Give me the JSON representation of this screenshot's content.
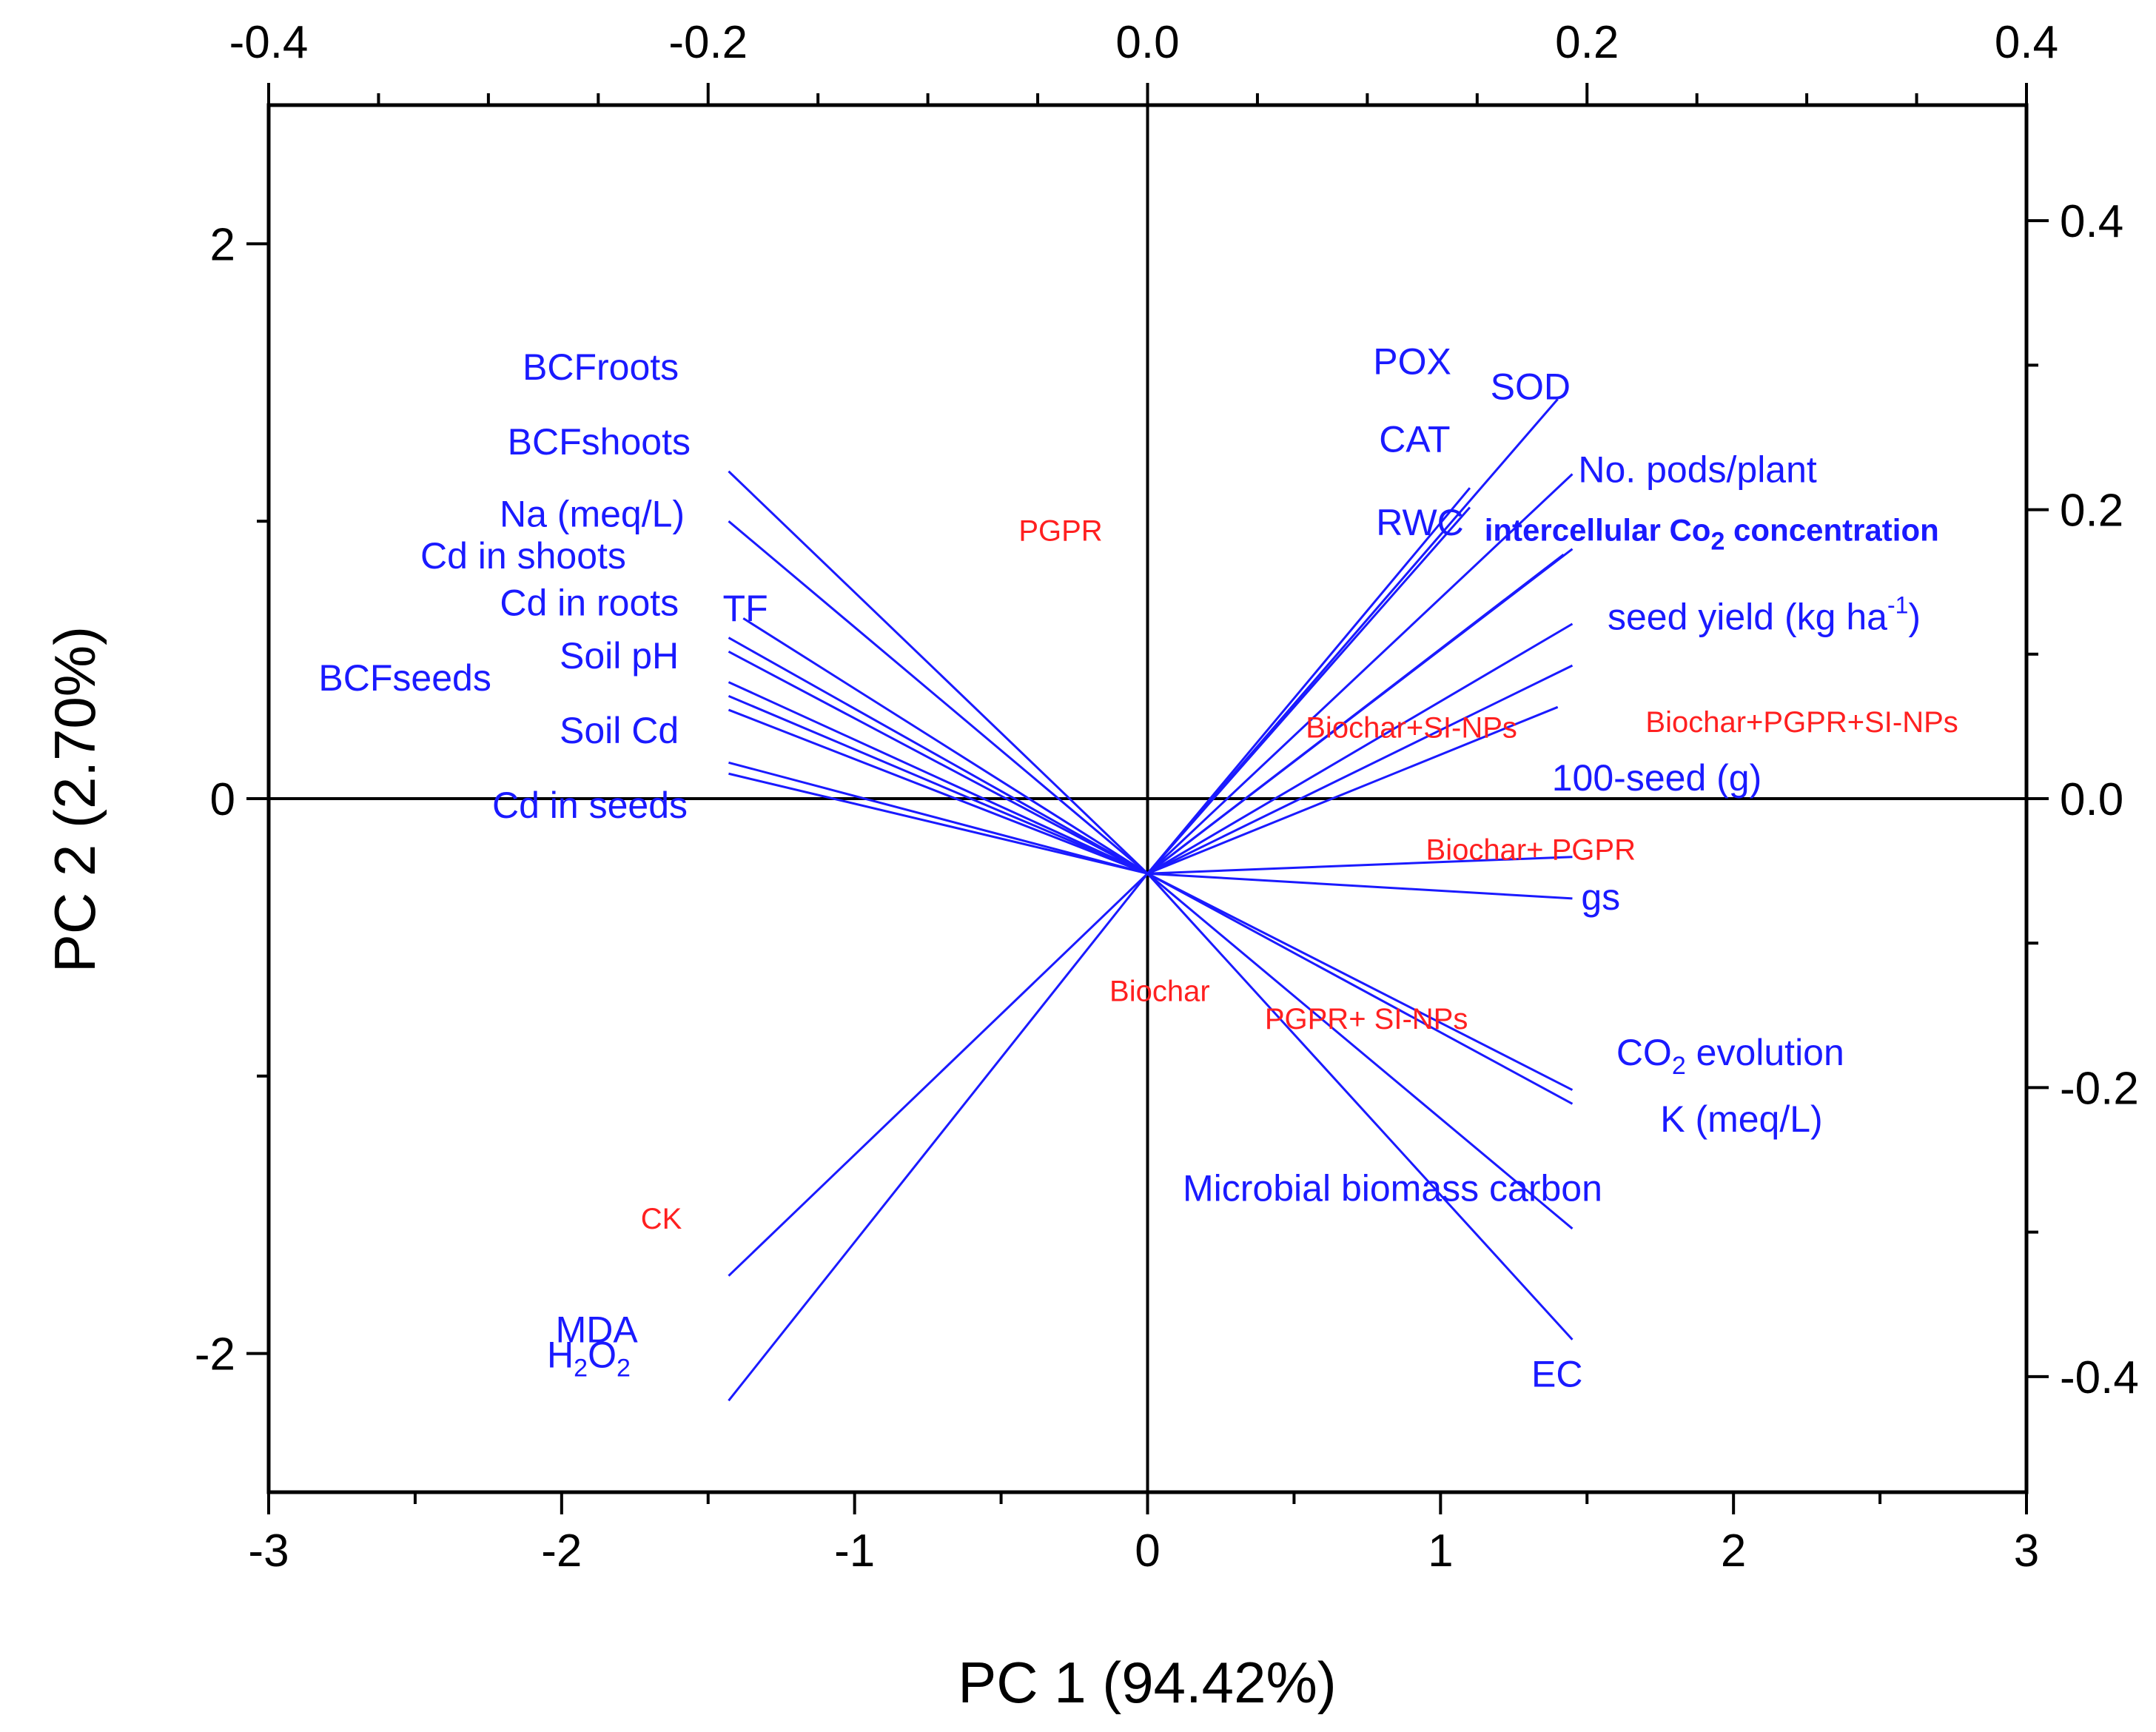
{
  "chart_data": {
    "type": "biplot",
    "xlabel": "PC 1 (94.42%)",
    "ylabel": "PC 2 (2.70%)",
    "xlim": [
      -3,
      3
    ],
    "ylim": [
      -2.5,
      2.5
    ],
    "x_ticks": [
      "-3",
      "-2",
      "-1",
      "0",
      "1",
      "2",
      "3"
    ],
    "y_ticks": [
      "-2",
      "0",
      "2"
    ],
    "top_axis": {
      "lim": [
        -0.4,
        0.4
      ],
      "ticks": [
        "-0.4",
        "-0.2",
        "0.0",
        "0.2",
        "0.4"
      ]
    },
    "right_axis": {
      "lim": [
        -0.48,
        0.48
      ],
      "ticks": [
        "-0.4",
        "-0.2",
        "0.0",
        "0.2",
        "0.4"
      ]
    },
    "colors": {
      "loadings": "#1a1aff",
      "scores": "#ff2020",
      "axes": "#000000"
    },
    "origin": [
      0,
      -0.27
    ],
    "loadings": [
      {
        "name": "BCFroots",
        "end": [
          -1.43,
          1.18
        ],
        "label": "BCFroots",
        "label_at": [
          -1.6,
          1.51
        ],
        "anchor": "end"
      },
      {
        "name": "BCFshoots",
        "end": [
          -1.43,
          1.0
        ],
        "label": "BCFshoots",
        "label_at": [
          -1.56,
          1.24
        ],
        "anchor": "end"
      },
      {
        "name": "Na (meq/L)",
        "end": [
          -1.43,
          0.58
        ],
        "label": "Na (meq/L)",
        "label_at": [
          -1.58,
          0.98
        ],
        "anchor": "end"
      },
      {
        "name": "Cd in shoots",
        "end": [
          -1.43,
          0.53
        ],
        "label": "Cd in shoots",
        "label_at": [
          -1.78,
          0.83
        ],
        "anchor": "end"
      },
      {
        "name": "TF",
        "end": [
          -1.38,
          0.65
        ],
        "label": "TF",
        "label_at": [
          -1.45,
          0.64
        ],
        "anchor": "start"
      },
      {
        "name": "Cd in roots",
        "end": [
          -1.43,
          0.42
        ],
        "label": "Cd in roots",
        "label_at": [
          -1.6,
          0.66
        ],
        "anchor": "end"
      },
      {
        "name": "Soil pH",
        "end": [
          -1.43,
          0.37
        ],
        "label": "Soil pH",
        "label_at": [
          -1.6,
          0.47
        ],
        "anchor": "end"
      },
      {
        "name": "BCFseeds",
        "end": [
          -1.43,
          0.32
        ],
        "label": "BCFseeds",
        "label_at": [
          -2.24,
          0.39
        ],
        "anchor": "end"
      },
      {
        "name": "Soil Cd",
        "end": [
          -1.43,
          0.13
        ],
        "label": "Soil Cd",
        "label_at": [
          -1.6,
          0.2
        ],
        "anchor": "end"
      },
      {
        "name": "Cd in seeds",
        "end": [
          -1.43,
          0.09
        ],
        "label": "Cd in seeds",
        "label_at": [
          -1.57,
          -0.07
        ],
        "anchor": "end"
      },
      {
        "name": "POX",
        "end": [
          1.1,
          1.12
        ],
        "label": "POX",
        "label_at": [
          0.77,
          1.53
        ],
        "anchor": "start"
      },
      {
        "name": "SOD",
        "end": [
          1.4,
          1.44
        ],
        "label": "SOD",
        "label_at": [
          1.17,
          1.44
        ],
        "anchor": "start"
      },
      {
        "name": "CAT",
        "end": [
          1.1,
          1.05
        ],
        "label": "CAT",
        "label_at": [
          0.79,
          1.25
        ],
        "anchor": "start"
      },
      {
        "name": "No. pods/plant",
        "end": [
          1.45,
          1.17
        ],
        "label": "No. pods/plant",
        "label_at": [
          1.47,
          1.14
        ],
        "anchor": "start"
      },
      {
        "name": "RWC",
        "end": [
          1.42,
          0.88
        ],
        "label": "RWC",
        "label_at": [
          0.78,
          0.95
        ],
        "anchor": "start"
      },
      {
        "name": "intercellular CO2 concentration",
        "end": [
          1.45,
          0.9
        ],
        "label": "intercellular Co",
        "sub": "2",
        "tail": " concentration",
        "label_at": [
          1.15,
          0.93
        ],
        "anchor": "start",
        "bold": true
      },
      {
        "name": "seed yield (kg ha-1)",
        "end": [
          1.45,
          0.63
        ],
        "label": "seed yield (kg ha",
        "sup": "-1",
        "tail": ")",
        "label_at": [
          1.57,
          0.61
        ],
        "anchor": "start"
      },
      {
        "name": "seed yield line 2",
        "end": [
          1.45,
          0.48
        ]
      },
      {
        "name": "100-seed (g)",
        "end": [
          1.4,
          0.33
        ],
        "label": "100-seed (g)",
        "label_at": [
          1.38,
          0.03
        ],
        "anchor": "start"
      },
      {
        "name": "gs",
        "end": [
          1.45,
          -0.21
        ],
        "label": "gs",
        "label_at": [
          1.48,
          -0.4
        ],
        "anchor": "start"
      },
      {
        "name": "gs line 2",
        "end": [
          1.45,
          -0.36
        ]
      },
      {
        "name": "CO2 evolution",
        "end": [
          1.45,
          -1.05
        ],
        "label": "CO",
        "sub": "2",
        "tail": " evolution",
        "label_at": [
          1.6,
          -0.96
        ],
        "anchor": "start"
      },
      {
        "name": "K (meq/L)",
        "end": [
          1.45,
          -1.1
        ],
        "label": "K  (meq/L)",
        "label_at": [
          1.75,
          -1.2
        ],
        "anchor": "start"
      },
      {
        "name": "Microbial biomass carbon",
        "end": [
          1.45,
          -1.55
        ],
        "label": "Microbial biomass carbon",
        "label_at": [
          0.12,
          -1.45
        ],
        "anchor": "start"
      },
      {
        "name": "EC",
        "end": [
          1.45,
          -1.95
        ],
        "label": "EC",
        "label_at": [
          1.31,
          -2.12
        ],
        "anchor": "start"
      },
      {
        "name": "MDA",
        "end": [
          -1.43,
          -1.72
        ],
        "label": "MDA",
        "label_at": [
          -1.74,
          -1.96
        ],
        "anchor": "end"
      },
      {
        "name": "H2O2",
        "end": [
          -1.43,
          -2.17
        ],
        "label": "H",
        "sub": "2",
        "tail": "O",
        "sub2": "2",
        "label_at": [
          -2.05,
          -2.05
        ],
        "anchor": "start"
      }
    ],
    "scores": [
      {
        "label": "PGPR",
        "at": [
          -0.44,
          0.93
        ]
      },
      {
        "label": "Biochar+SI-NPs",
        "at": [
          0.54,
          0.22
        ]
      },
      {
        "label": "Biochar+PGPR+SI-NPs",
        "at": [
          1.7,
          0.24
        ]
      },
      {
        "label": "Biochar+ PGPR",
        "at": [
          0.95,
          -0.22
        ]
      },
      {
        "label": "Biochar",
        "at": [
          -0.13,
          -0.73
        ]
      },
      {
        "label": "PGPR+ SI-NPs",
        "at": [
          0.4,
          -0.83
        ]
      },
      {
        "label": "CK",
        "at": [
          -1.73,
          -1.55
        ]
      }
    ]
  }
}
